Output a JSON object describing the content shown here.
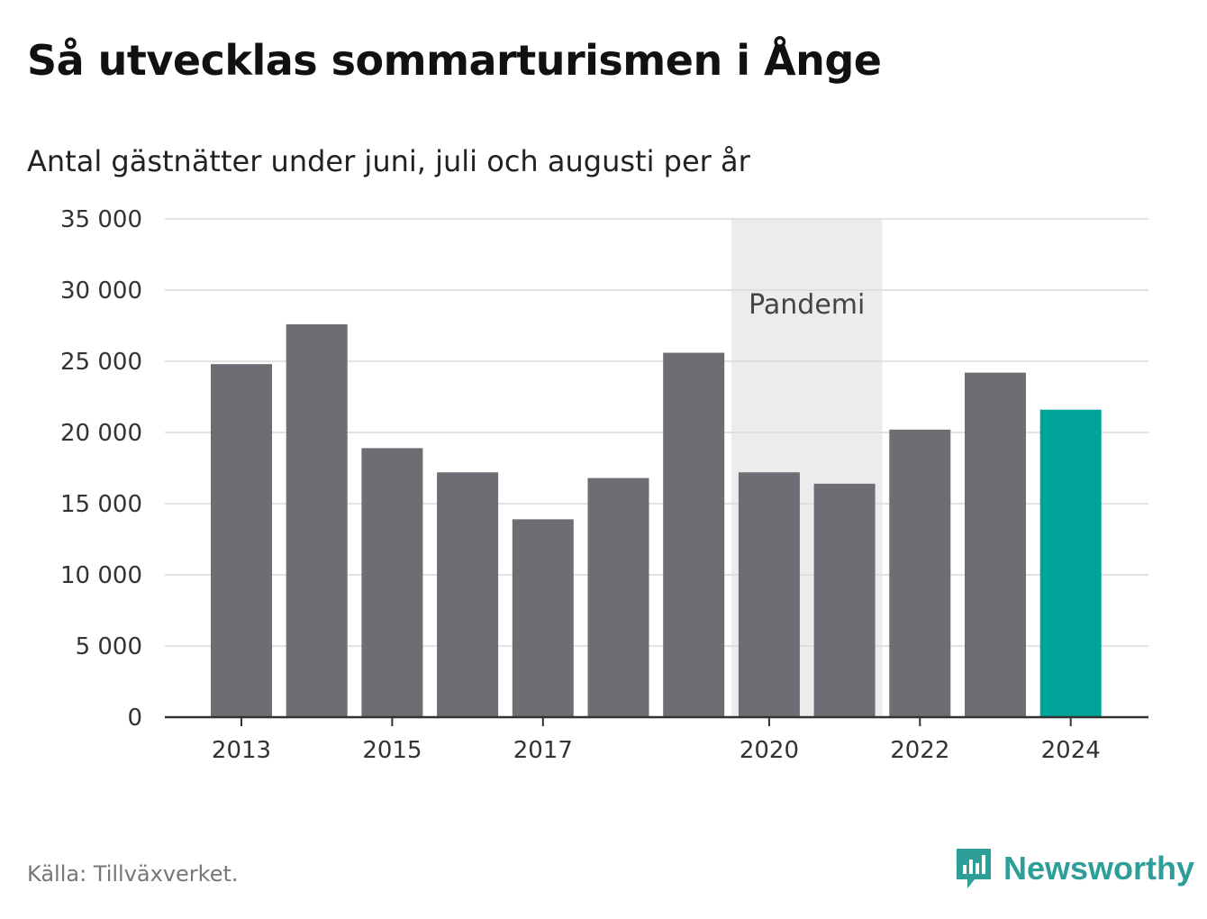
{
  "title": "Så utvecklas sommarturismen i Ånge",
  "subtitle": "Antal gästnätter under juni, juli och augusti per år",
  "source": "Källa: Tillväxverket.",
  "brand": {
    "name": "Newsworthy",
    "icon": "newsworthy-logo-icon",
    "color": "#2e9e98"
  },
  "colors": {
    "bar": "#6e6d73",
    "highlight": "#00a39a",
    "band": "#ececec",
    "grid": "#d9d9d9",
    "axis": "#333333"
  },
  "chart_data": {
    "type": "bar",
    "categories": [
      "2013",
      "2014",
      "2015",
      "2016",
      "2017",
      "2018",
      "2019",
      "2020",
      "2021",
      "2022",
      "2023",
      "2024"
    ],
    "values": [
      24800,
      27600,
      18900,
      17200,
      13900,
      16800,
      25600,
      17200,
      16400,
      20200,
      24200,
      21600
    ],
    "highlight_category": "2024",
    "x_tick_labels": [
      "2013",
      "2015",
      "2017",
      "2020",
      "2022",
      "2024"
    ],
    "y_ticks": [
      0,
      5000,
      10000,
      15000,
      20000,
      25000,
      30000,
      35000
    ],
    "y_tick_labels": [
      "0",
      "5 000",
      "10 000",
      "15 000",
      "20 000",
      "25 000",
      "30 000",
      "35 000"
    ],
    "ylim": [
      0,
      35000
    ],
    "grid": true,
    "xlabel": "",
    "ylabel": "",
    "annotation": {
      "label": "Pandemi",
      "from": "2020",
      "to": "2021"
    }
  }
}
